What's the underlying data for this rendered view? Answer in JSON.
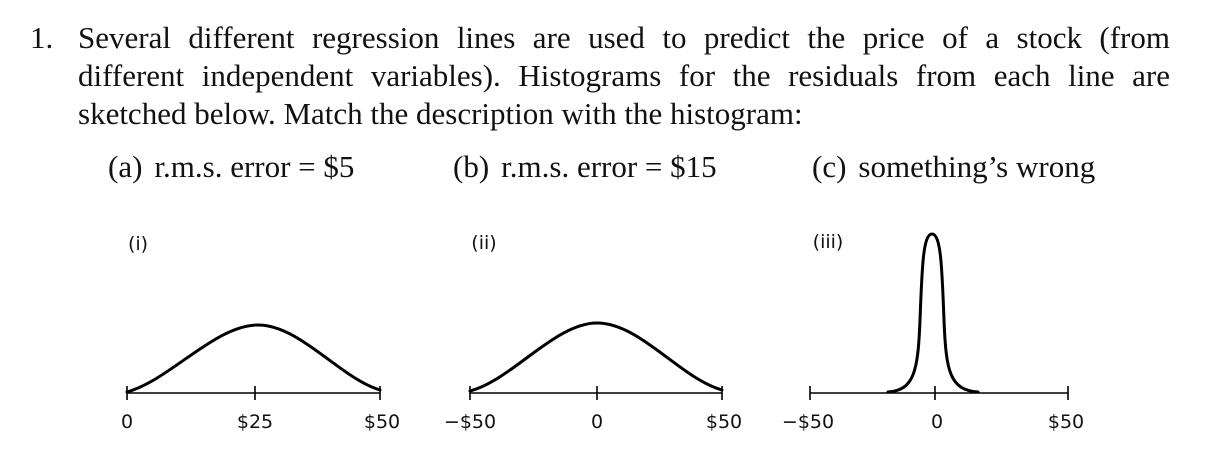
{
  "question": {
    "number": "1.",
    "lines": [
      "Several different regression lines are used to predict the price of a stock (from",
      "different independent variables). Histograms for the residuals from each line are",
      "sketched below. Match the description with the histogram:"
    ],
    "options": [
      {
        "label": "(a)",
        "text": "r.m.s. error = $5"
      },
      {
        "label": "(b)",
        "text": "r.m.s. error = $15"
      },
      {
        "label": "(c)",
        "text": "something’s wrong"
      }
    ]
  },
  "panels": [
    {
      "label": "(i)",
      "ticks": [
        "0",
        "$25",
        "$50"
      ]
    },
    {
      "label": "(ii)",
      "ticks": [
        "−$50",
        "0",
        "$50"
      ]
    },
    {
      "label": "(iii)",
      "ticks": [
        "−$50",
        "0",
        "$50"
      ]
    }
  ]
}
